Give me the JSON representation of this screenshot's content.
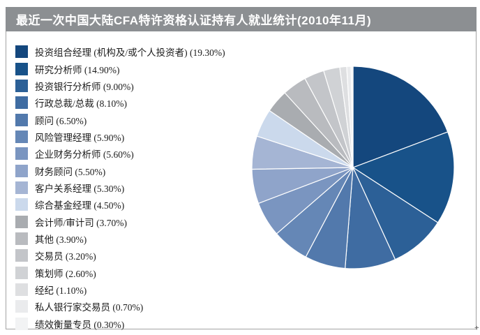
{
  "window": {
    "title_bar_color": "#8C8F92",
    "frame_border_color": "#A3A3A3"
  },
  "chart_data": {
    "type": "pie",
    "title": "最近一次中国大陆CFA特许资格认证持有人就业统计(2010年11月)",
    "legend_position": "left",
    "start_angle_deg": 0,
    "direction": "clockwise",
    "slice_stroke_color": "#FFFFFF",
    "slices": [
      {
        "label": "投资组合经理 (机构及/或个人投资者)",
        "value": 19.3,
        "text": "投资组合经理 (机构及/或个人投资者) (19.30%)",
        "color": "#14477D"
      },
      {
        "label": "研究分析师",
        "value": 14.9,
        "text": "研究分析师 (14.90%)",
        "color": "#185289"
      },
      {
        "label": "投资银行分析师",
        "value": 9.0,
        "text": "投资银行分析师 (9.00%)",
        "color": "#2C6097"
      },
      {
        "label": "行政总裁/总裁",
        "value": 8.1,
        "text": "行政总裁/总裁 (8.10%)",
        "color": "#3F6CA2"
      },
      {
        "label": "顾问",
        "value": 6.5,
        "text": "顾问 (6.50%)",
        "color": "#5279AC"
      },
      {
        "label": "风险管理经理",
        "value": 5.9,
        "text": "风险管理经理 (5.90%)",
        "color": "#6587B6"
      },
      {
        "label": "企业财务分析师",
        "value": 5.6,
        "text": "企业财务分析师 (5.60%)",
        "color": "#7A95C0"
      },
      {
        "label": "财务顾问",
        "value": 5.5,
        "text": "财务顾问 (5.50%)",
        "color": "#8FA4CA"
      },
      {
        "label": "客户关系经理",
        "value": 5.3,
        "text": "客户关系经理 (5.30%)",
        "color": "#A5B5D4"
      },
      {
        "label": "综合基金经理",
        "value": 4.5,
        "text": "综合基金经理 (4.50%)",
        "color": "#CBD9EC"
      },
      {
        "label": "会计师/审计司",
        "value": 3.7,
        "text": "会计师/审计司 (3.70%)",
        "color": "#A9ACB0"
      },
      {
        "label": "其他",
        "value": 3.9,
        "text": "其他 (3.90%)",
        "color": "#B9BBBF"
      },
      {
        "label": "交易员",
        "value": 3.2,
        "text": "交易员 (3.20%)",
        "color": "#C3C5C9"
      },
      {
        "label": "策划师",
        "value": 2.6,
        "text": "策划师 (2.60%)",
        "color": "#D0D2D5"
      },
      {
        "label": "经纪",
        "value": 1.1,
        "text": "经纪 (1.10%)",
        "color": "#DEDFE1"
      },
      {
        "label": "私人银行家交易员",
        "value": 0.7,
        "text": "私人银行家交易员 (0.70%)",
        "color": "#EAEBED"
      },
      {
        "label": "绩效衡量专员",
        "value": 0.3,
        "text": "绩效衡量专员 (0.30%)",
        "color": "#F2F3F4"
      }
    ]
  },
  "decorations": {
    "cursor_mark": "+"
  }
}
